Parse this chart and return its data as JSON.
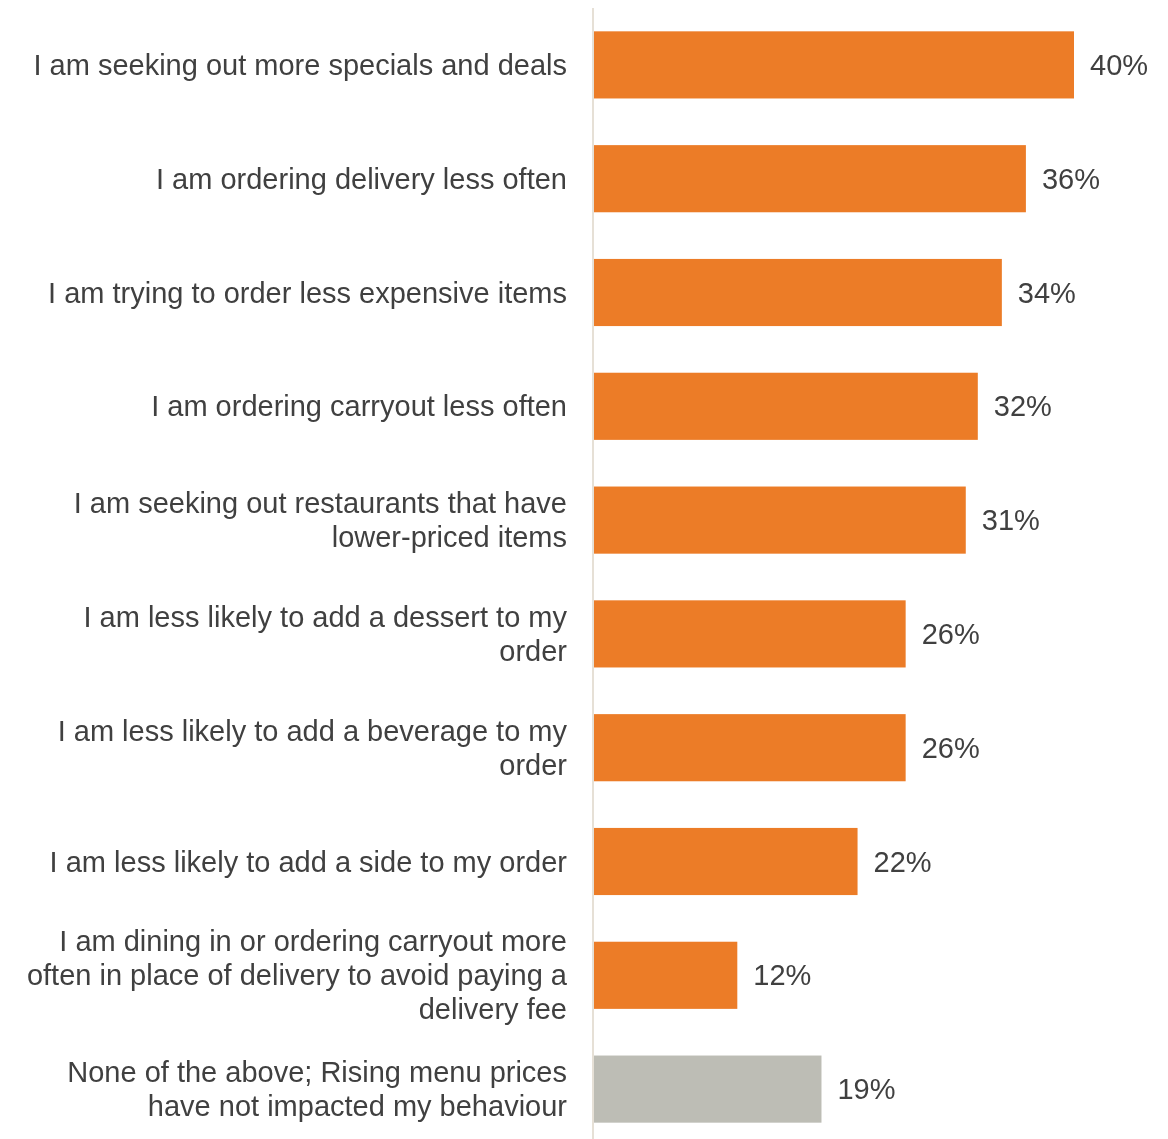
{
  "chart_data": {
    "type": "bar",
    "orientation": "horizontal",
    "categories": [
      "I am seeking out more specials and deals",
      "I am ordering delivery less often",
      "I am trying to order less expensive items",
      "I am ordering carryout less often",
      "I am seeking out restaurants that have lower-priced items",
      "I am less likely to add a dessert to my order",
      "I am less likely to add a beverage to my order",
      "I am less likely to add a side to my order",
      "I am dining in or ordering carryout more often in place of delivery to avoid paying a delivery fee",
      "None of the above; Rising menu prices have not impacted my behaviour"
    ],
    "values": [
      40,
      36,
      34,
      32,
      31,
      26,
      26,
      22,
      12,
      19
    ],
    "value_labels": [
      "40%",
      "36%",
      "34%",
      "32%",
      "31%",
      "26%",
      "26%",
      "22%",
      "12%",
      "19%"
    ],
    "colors": [
      "#ec7c27",
      "#ec7c27",
      "#ec7c27",
      "#ec7c27",
      "#ec7c27",
      "#ec7c27",
      "#ec7c27",
      "#ec7c27",
      "#ec7c27",
      "#bdbdb5"
    ]
  }
}
